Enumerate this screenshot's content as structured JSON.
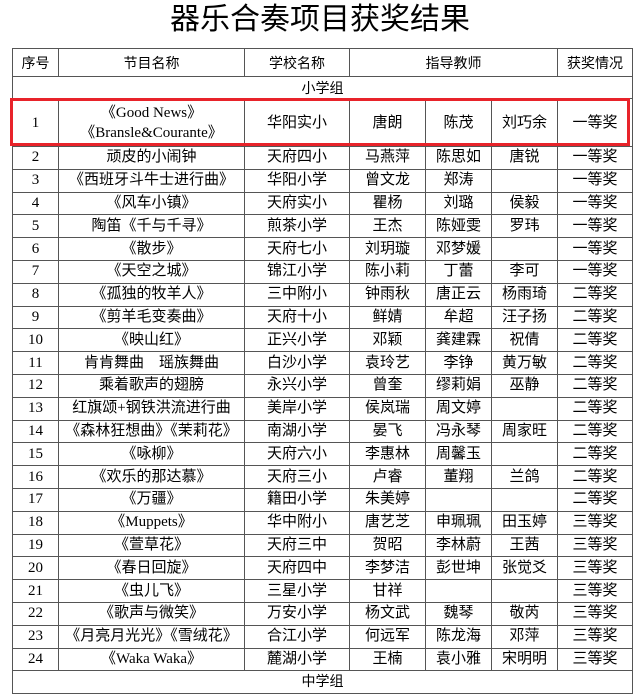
{
  "title": "器乐合奏项目获奖结果",
  "headers": {
    "no": "序号",
    "program": "节目名称",
    "school": "学校名称",
    "teachers": "指导教师",
    "award": "获奖情况"
  },
  "group_primary": "小学组",
  "group_next": "中学组",
  "highlight_color": "#e8232a",
  "rows": [
    {
      "no": "1",
      "program": "《Good News》\n《Bransle&Courante》",
      "school": "华阳实小",
      "t1": "唐朗",
      "t2": "陈茂",
      "t3": "刘巧余",
      "award": "一等奖"
    },
    {
      "no": "2",
      "program": "顽皮的小闹钟",
      "school": "天府四小",
      "t1": "马燕萍",
      "t2": "陈思如",
      "t3": "唐锐",
      "award": "一等奖"
    },
    {
      "no": "3",
      "program": "《西班牙斗牛士进行曲》",
      "school": "华阳小学",
      "t1": "曾文龙",
      "t2": "郑涛",
      "t3": "",
      "award": "一等奖"
    },
    {
      "no": "4",
      "program": "《风车小镇》",
      "school": "天府实小",
      "t1": "瞿杨",
      "t2": "刘璐",
      "t3": "侯毅",
      "award": "一等奖"
    },
    {
      "no": "5",
      "program": "陶笛《千与千寻》",
      "school": "煎茶小学",
      "t1": "王杰",
      "t2": "陈娅雯",
      "t3": "罗玮",
      "award": "一等奖"
    },
    {
      "no": "6",
      "program": "《散步》",
      "school": "天府七小",
      "t1": "刘玥璇",
      "t2": "邓梦媛",
      "t3": "",
      "award": "一等奖"
    },
    {
      "no": "7",
      "program": "《天空之城》",
      "school": "锦江小学",
      "t1": "陈小莉",
      "t2": "丁蕾",
      "t3": "李可",
      "award": "一等奖"
    },
    {
      "no": "8",
      "program": "《孤独的牧羊人》",
      "school": "三中附小",
      "t1": "钟雨秋",
      "t2": "唐正云",
      "t3": "杨雨琦",
      "award": "二等奖"
    },
    {
      "no": "9",
      "program": "《剪羊毛变奏曲》",
      "school": "天府十小",
      "t1": "鲜婧",
      "t2": "牟超",
      "t3": "汪子扬",
      "award": "二等奖"
    },
    {
      "no": "10",
      "program": "《映山红》",
      "school": "正兴小学",
      "t1": "邓颖",
      "t2": "龚建霖",
      "t3": "祝倩",
      "award": "二等奖"
    },
    {
      "no": "11",
      "program": "肯肯舞曲　瑶族舞曲",
      "school": "白沙小学",
      "t1": "袁玲艺",
      "t2": "李铮",
      "t3": "黄万敏",
      "award": "二等奖"
    },
    {
      "no": "12",
      "program": "乘着歌声的翅膀",
      "school": "永兴小学",
      "t1": "曾奎",
      "t2": "缪莉娟",
      "t3": "巫静",
      "award": "二等奖"
    },
    {
      "no": "13",
      "program": "红旗颂+钢铁洪流进行曲",
      "school": "美岸小学",
      "t1": "侯岚瑞",
      "t2": "周文婷",
      "t3": "",
      "award": "二等奖"
    },
    {
      "no": "14",
      "program": "《森林狂想曲》《茉莉花》",
      "school": "南湖小学",
      "t1": "晏飞",
      "t2": "冯永琴",
      "t3": "周家旺",
      "award": "二等奖"
    },
    {
      "no": "15",
      "program": "《咏柳》",
      "school": "天府六小",
      "t1": "李惠林",
      "t2": "周馨玉",
      "t3": "",
      "award": "二等奖"
    },
    {
      "no": "16",
      "program": "《欢乐的那达慕》",
      "school": "天府三小",
      "t1": "卢睿",
      "t2": "董翔",
      "t3": "兰鸽",
      "award": "二等奖"
    },
    {
      "no": "17",
      "program": "《万疆》",
      "school": "籍田小学",
      "t1": "朱美婷",
      "t2": "",
      "t3": "",
      "award": "二等奖"
    },
    {
      "no": "18",
      "program": "《Muppets》",
      "school": "华中附小",
      "t1": "唐艺芝",
      "t2": "申珮珮",
      "t3": "田玉婷",
      "award": "三等奖"
    },
    {
      "no": "19",
      "program": "《萱草花》",
      "school": "天府三中",
      "t1": "贺昭",
      "t2": "李林蔚",
      "t3": "王茜",
      "award": "三等奖"
    },
    {
      "no": "20",
      "program": "《春日回旋》",
      "school": "天府四中",
      "t1": "李梦洁",
      "t2": "彭世坤",
      "t3": "张觉爻",
      "award": "三等奖"
    },
    {
      "no": "21",
      "program": "《虫儿飞》",
      "school": "三星小学",
      "t1": "甘祥",
      "t2": "",
      "t3": "",
      "award": "三等奖"
    },
    {
      "no": "22",
      "program": "《歌声与微笑》",
      "school": "万安小学",
      "t1": "杨文武",
      "t2": "魏琴",
      "t3": "敬芮",
      "award": "三等奖"
    },
    {
      "no": "23",
      "program": "《月亮月光光》《雪绒花》",
      "school": "合江小学",
      "t1": "何远军",
      "t2": "陈龙海",
      "t3": "邓萍",
      "award": "三等奖"
    },
    {
      "no": "24",
      "program": "《Waka Waka》",
      "school": "麓湖小学",
      "t1": "王楠",
      "t2": "袁小雅",
      "t3": "宋明明",
      "award": "三等奖"
    }
  ]
}
